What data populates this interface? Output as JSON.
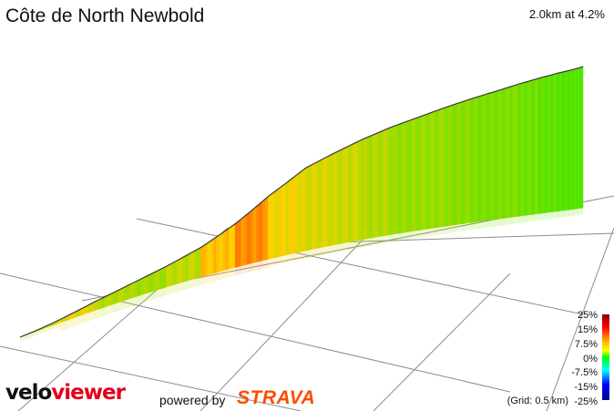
{
  "title": "Côte de North Newbold",
  "summary": "2.0km at 4.2%",
  "brand": {
    "velo": "velo",
    "viewer": "viewer",
    "powered_by": "powered by",
    "strava": "STRAVA"
  },
  "legend": {
    "labels": [
      "25%",
      "15%",
      "7.5%",
      "0%",
      "-7.5%",
      "-15%",
      "-25%"
    ],
    "grid_note": "(Grid: 0.5 km)"
  },
  "colors": {
    "strava": "#fc4c02",
    "viewer": "#e3001b",
    "outline": "#3a3a3a",
    "grid": "#8c8c8c"
  },
  "chart_data": {
    "type": "area",
    "title": "Côte de North Newbold",
    "distance_km": 2.0,
    "avg_gradient_pct": 4.2,
    "grid_spacing_km": 0.5,
    "x_unit": "km",
    "distance": [
      0.0,
      0.05,
      0.1,
      0.2,
      0.3,
      0.4,
      0.5,
      0.6,
      0.7,
      0.8,
      0.9,
      1.0,
      1.1,
      1.2,
      1.3,
      1.4,
      1.5,
      1.6,
      1.7,
      1.8,
      1.9,
      2.0
    ],
    "gradient_pct": [
      2.5,
      3.0,
      5.5,
      6.5,
      4.5,
      4.0,
      5.0,
      8.0,
      10.0,
      7.0,
      6.0,
      5.5,
      4.5,
      3.5,
      3.5,
      3.0,
      2.5,
      2.5,
      2.0,
      1.5,
      1.0,
      1.0
    ],
    "color_scale_pct": [
      25,
      15,
      7.5,
      0,
      -7.5,
      -15,
      -25
    ],
    "grid": true,
    "legend_position": "bottom-right"
  }
}
